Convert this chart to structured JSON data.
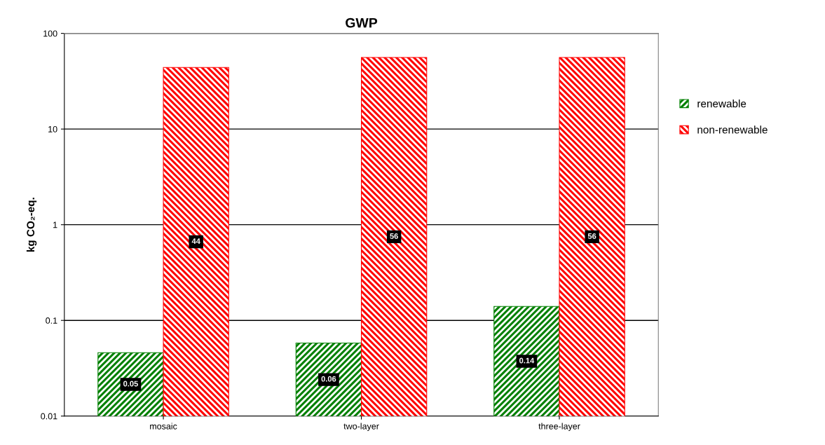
{
  "chart_data": {
    "type": "bar",
    "title": "GWP",
    "ylabel": "kg CO₂-eq.",
    "categories": [
      "mosaic",
      "two-layer",
      "three-layer"
    ],
    "series": [
      {
        "name": "renewable",
        "color": "#008000",
        "values": [
          0.046,
          0.058,
          0.14
        ],
        "value_labels": [
          "0.05",
          "0.06",
          "0.14"
        ]
      },
      {
        "name": "non-renewable",
        "color": "#ff0000",
        "values": [
          44,
          56,
          56
        ],
        "value_labels": [
          "44",
          "56",
          "56"
        ]
      }
    ],
    "log": true,
    "ylim": [
      0.01,
      100
    ],
    "yticks": [
      0.01,
      0.1,
      1,
      10,
      100
    ],
    "grid": "y",
    "legend": "right"
  }
}
